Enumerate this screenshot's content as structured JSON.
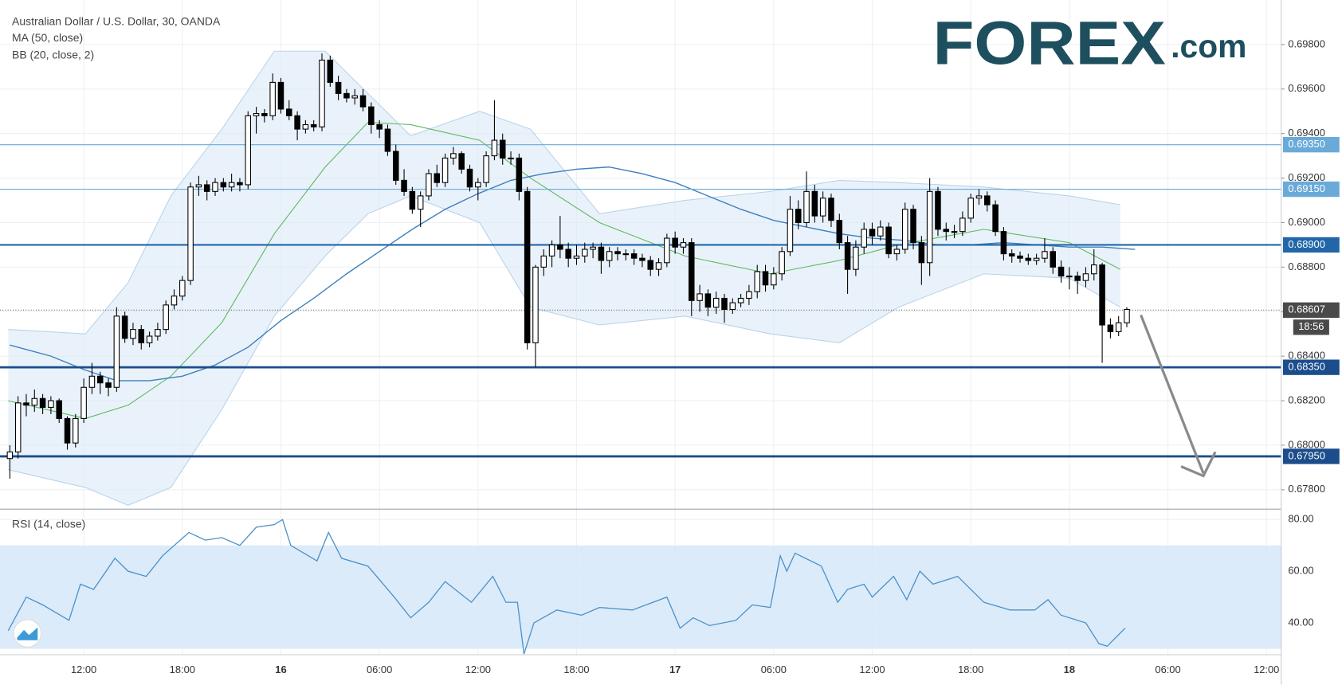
{
  "chart_data": {
    "type": "candlestick",
    "title": "Australian Dollar / U.S. Dollar, 30, OANDA",
    "indicators": [
      "MA (50, close)",
      "BB (20, close, 2)"
    ],
    "logo": {
      "brand": "FOREX",
      "suffix": ".com"
    },
    "xlim": [
      6.9,
      84.9
    ],
    "xticks": [
      {
        "value": 12,
        "label": "12:00"
      },
      {
        "value": 18,
        "label": "18:00"
      },
      {
        "value": 24,
        "label": "16"
      },
      {
        "value": 30,
        "label": "06:00"
      },
      {
        "value": 36,
        "label": "12:00"
      },
      {
        "value": 42,
        "label": "18:00"
      },
      {
        "value": 48,
        "label": "17"
      },
      {
        "value": 54,
        "label": "06:00"
      },
      {
        "value": 60,
        "label": "12:00"
      },
      {
        "value": 66,
        "label": "18:00"
      },
      {
        "value": 72,
        "label": "18"
      },
      {
        "value": 78,
        "label": "06:00"
      },
      {
        "value": 84,
        "label": "12:00"
      }
    ],
    "ylim": [
      0.6772,
      0.7
    ],
    "yticks": [
      {
        "value": 0.698,
        "label": "0.69800"
      },
      {
        "value": 0.696,
        "label": "0.69600"
      },
      {
        "value": 0.694,
        "label": "0.69400"
      },
      {
        "value": 0.692,
        "label": "0.69200"
      },
      {
        "value": 0.69,
        "label": "0.69000"
      },
      {
        "value": 0.688,
        "label": "0.68800"
      },
      {
        "value": 0.686,
        "label": "0.68600"
      },
      {
        "value": 0.684,
        "label": "0.68400"
      },
      {
        "value": 0.682,
        "label": "0.68200"
      },
      {
        "value": 0.68,
        "label": "0.68000"
      },
      {
        "value": 0.678,
        "label": "0.67800"
      }
    ],
    "grid": true,
    "up_color": "#ffffff",
    "down_color": "#000000",
    "x": [
      7.5,
      8,
      8.5,
      9,
      9.5,
      10,
      10.5,
      11,
      11.5,
      12,
      12.5,
      13,
      13.5,
      14,
      14.5,
      15,
      15.5,
      16,
      16.5,
      17,
      17.5,
      18,
      18.5,
      19,
      19.5,
      20,
      20.5,
      21,
      21.5,
      22,
      22.5,
      23,
      23.5,
      24,
      24.5,
      25,
      25.5,
      26,
      26.5,
      27,
      27.5,
      28,
      28.5,
      29,
      29.5,
      30,
      30.5,
      31,
      31.5,
      32,
      32.5,
      33,
      33.5,
      34,
      34.5,
      35,
      35.5,
      36,
      36.5,
      37,
      37.5,
      38,
      38.5,
      39,
      39.5,
      40,
      40.5,
      41,
      41.5,
      42,
      42.5,
      43,
      43.5,
      44,
      44.5,
      45,
      45.5,
      46,
      46.5,
      47,
      47.5,
      48,
      48.5,
      49,
      49.5,
      50,
      50.5,
      51,
      51.5,
      52,
      52.5,
      53,
      53.5,
      54,
      54.5,
      55,
      55.5,
      56,
      56.5,
      57,
      57.5,
      58,
      58.5,
      59,
      59.5,
      60,
      60.5,
      61,
      61.5,
      62,
      62.5,
      63,
      63.5,
      64,
      64.5,
      65,
      65.5,
      66,
      66.5,
      67,
      67.5,
      68,
      68.5,
      69,
      69.5,
      70,
      70.5,
      71,
      71.5,
      72,
      72.5,
      73,
      73.5,
      74,
      74.5,
      75,
      75.5
    ],
    "ohlc": [
      [
        0.6794,
        0.68,
        0.6785,
        0.6797
      ],
      [
        0.6797,
        0.6822,
        0.6794,
        0.6819
      ],
      [
        0.6819,
        0.6823,
        0.6813,
        0.6818
      ],
      [
        0.6818,
        0.6825,
        0.6815,
        0.6821
      ],
      [
        0.6821,
        0.6823,
        0.6814,
        0.6817
      ],
      [
        0.6817,
        0.6822,
        0.6814,
        0.682
      ],
      [
        0.682,
        0.6821,
        0.681,
        0.6812
      ],
      [
        0.6812,
        0.6813,
        0.6798,
        0.6801
      ],
      [
        0.6801,
        0.6814,
        0.6799,
        0.6812
      ],
      [
        0.6812,
        0.683,
        0.681,
        0.6826
      ],
      [
        0.6826,
        0.6837,
        0.6823,
        0.6831
      ],
      [
        0.6831,
        0.6833,
        0.6823,
        0.6828
      ],
      [
        0.6828,
        0.683,
        0.6822,
        0.6826
      ],
      [
        0.6826,
        0.6862,
        0.6824,
        0.6858
      ],
      [
        0.6858,
        0.686,
        0.6846,
        0.6848
      ],
      [
        0.6848,
        0.6855,
        0.6845,
        0.6852
      ],
      [
        0.6852,
        0.6854,
        0.6843,
        0.6846
      ],
      [
        0.6846,
        0.6851,
        0.6844,
        0.6849
      ],
      [
        0.6849,
        0.6855,
        0.6847,
        0.6852
      ],
      [
        0.6852,
        0.6865,
        0.685,
        0.6863
      ],
      [
        0.6863,
        0.687,
        0.6861,
        0.6867
      ],
      [
        0.6867,
        0.6876,
        0.6865,
        0.6874
      ],
      [
        0.6874,
        0.6918,
        0.6872,
        0.6916
      ],
      [
        0.6916,
        0.6921,
        0.6912,
        0.6917
      ],
      [
        0.6917,
        0.6919,
        0.691,
        0.6914
      ],
      [
        0.6914,
        0.692,
        0.6912,
        0.6918
      ],
      [
        0.6918,
        0.692,
        0.6914,
        0.6916
      ],
      [
        0.6916,
        0.6922,
        0.6914,
        0.6918
      ],
      [
        0.6918,
        0.692,
        0.6914,
        0.6917
      ],
      [
        0.6917,
        0.695,
        0.6915,
        0.6948
      ],
      [
        0.6948,
        0.6952,
        0.694,
        0.6949
      ],
      [
        0.6949,
        0.6951,
        0.6945,
        0.6948
      ],
      [
        0.6948,
        0.6967,
        0.6946,
        0.6963
      ],
      [
        0.6963,
        0.6965,
        0.6949,
        0.6951
      ],
      [
        0.6951,
        0.6955,
        0.6946,
        0.6948
      ],
      [
        0.6948,
        0.695,
        0.6937,
        0.6942
      ],
      [
        0.6942,
        0.6946,
        0.694,
        0.6944
      ],
      [
        0.6944,
        0.6946,
        0.6941,
        0.6943
      ],
      [
        0.6943,
        0.6976,
        0.6941,
        0.6973
      ],
      [
        0.6973,
        0.6975,
        0.6961,
        0.6963
      ],
      [
        0.6963,
        0.6966,
        0.6955,
        0.6958
      ],
      [
        0.6958,
        0.696,
        0.6954,
        0.6956
      ],
      [
        0.6956,
        0.696,
        0.6953,
        0.6957
      ],
      [
        0.6957,
        0.696,
        0.695,
        0.6952
      ],
      [
        0.6952,
        0.6954,
        0.694,
        0.6944
      ],
      [
        0.6944,
        0.6946,
        0.6938,
        0.6942
      ],
      [
        0.6942,
        0.6944,
        0.693,
        0.6932
      ],
      [
        0.6932,
        0.6935,
        0.6917,
        0.6919
      ],
      [
        0.6919,
        0.6924,
        0.6912,
        0.6914
      ],
      [
        0.6914,
        0.6916,
        0.6904,
        0.6906
      ],
      [
        0.6906,
        0.6914,
        0.6898,
        0.6912
      ],
      [
        0.6912,
        0.6924,
        0.691,
        0.6922
      ],
      [
        0.6922,
        0.6926,
        0.6916,
        0.6918
      ],
      [
        0.6918,
        0.6931,
        0.6916,
        0.6929
      ],
      [
        0.6929,
        0.6934,
        0.6926,
        0.6931
      ],
      [
        0.6931,
        0.6932,
        0.6922,
        0.6924
      ],
      [
        0.6924,
        0.6926,
        0.6914,
        0.6916
      ],
      [
        0.6916,
        0.692,
        0.691,
        0.6918
      ],
      [
        0.6918,
        0.6932,
        0.6916,
        0.693
      ],
      [
        0.693,
        0.6955,
        0.6928,
        0.6937
      ],
      [
        0.6937,
        0.694,
        0.6926,
        0.6929
      ],
      [
        0.6929,
        0.6932,
        0.6926,
        0.6929
      ],
      [
        0.6929,
        0.6931,
        0.691,
        0.6914
      ],
      [
        0.6914,
        0.6916,
        0.6843,
        0.6846
      ],
      [
        0.6846,
        0.6881,
        0.6835,
        0.688
      ],
      [
        0.688,
        0.6888,
        0.6876,
        0.6885
      ],
      [
        0.6885,
        0.6892,
        0.688,
        0.689
      ],
      [
        0.689,
        0.6903,
        0.6884,
        0.6888
      ],
      [
        0.6888,
        0.6891,
        0.688,
        0.6884
      ],
      [
        0.6884,
        0.689,
        0.6881,
        0.6885
      ],
      [
        0.6885,
        0.6891,
        0.6882,
        0.6888
      ],
      [
        0.6888,
        0.6891,
        0.6884,
        0.6889
      ],
      [
        0.6889,
        0.6891,
        0.6877,
        0.6883
      ],
      [
        0.6883,
        0.6889,
        0.688,
        0.6887
      ],
      [
        0.6887,
        0.6889,
        0.6883,
        0.6886
      ],
      [
        0.6886,
        0.6888,
        0.6883,
        0.6886
      ],
      [
        0.6886,
        0.6888,
        0.6881,
        0.6884
      ],
      [
        0.6884,
        0.6886,
        0.688,
        0.6883
      ],
      [
        0.6883,
        0.6885,
        0.6876,
        0.6879
      ],
      [
        0.6879,
        0.6884,
        0.6876,
        0.6882
      ],
      [
        0.6882,
        0.6895,
        0.688,
        0.6893
      ],
      [
        0.6893,
        0.6896,
        0.6886,
        0.6889
      ],
      [
        0.6889,
        0.6893,
        0.6886,
        0.6891
      ],
      [
        0.6891,
        0.6893,
        0.6858,
        0.6865
      ],
      [
        0.6865,
        0.6872,
        0.686,
        0.6868
      ],
      [
        0.6868,
        0.687,
        0.6858,
        0.6862
      ],
      [
        0.6862,
        0.6869,
        0.6859,
        0.6866
      ],
      [
        0.6866,
        0.6868,
        0.6855,
        0.6861
      ],
      [
        0.6861,
        0.6866,
        0.6859,
        0.6864
      ],
      [
        0.6864,
        0.6868,
        0.6862,
        0.6866
      ],
      [
        0.6866,
        0.6872,
        0.6863,
        0.6869
      ],
      [
        0.6869,
        0.6881,
        0.6866,
        0.6878
      ],
      [
        0.6878,
        0.6881,
        0.6869,
        0.6872
      ],
      [
        0.6872,
        0.688,
        0.687,
        0.6877
      ],
      [
        0.6877,
        0.6889,
        0.6874,
        0.6887
      ],
      [
        0.6887,
        0.6912,
        0.6885,
        0.6906
      ],
      [
        0.6906,
        0.691,
        0.6897,
        0.69
      ],
      [
        0.69,
        0.6923,
        0.6898,
        0.6914
      ],
      [
        0.6914,
        0.6917,
        0.69,
        0.6903
      ],
      [
        0.6903,
        0.6914,
        0.69,
        0.6911
      ],
      [
        0.6911,
        0.6913,
        0.6898,
        0.6901
      ],
      [
        0.6901,
        0.6904,
        0.6888,
        0.6891
      ],
      [
        0.6891,
        0.6894,
        0.6868,
        0.6879
      ],
      [
        0.6879,
        0.6892,
        0.6876,
        0.6889
      ],
      [
        0.6889,
        0.69,
        0.6886,
        0.6897
      ],
      [
        0.6897,
        0.69,
        0.689,
        0.6894
      ],
      [
        0.6894,
        0.6901,
        0.6892,
        0.6898
      ],
      [
        0.6898,
        0.69,
        0.6884,
        0.6886
      ],
      [
        0.6886,
        0.689,
        0.6883,
        0.6888
      ],
      [
        0.6888,
        0.6909,
        0.6886,
        0.6906
      ],
      [
        0.6906,
        0.6908,
        0.6888,
        0.6891
      ],
      [
        0.6891,
        0.6894,
        0.6872,
        0.6882
      ],
      [
        0.6882,
        0.692,
        0.6876,
        0.6914
      ],
      [
        0.6914,
        0.6916,
        0.6894,
        0.6897
      ],
      [
        0.6897,
        0.69,
        0.6892,
        0.6896
      ],
      [
        0.6896,
        0.6899,
        0.6893,
        0.6896
      ],
      [
        0.6896,
        0.6905,
        0.6894,
        0.6902
      ],
      [
        0.6902,
        0.6913,
        0.69,
        0.6911
      ],
      [
        0.6911,
        0.6915,
        0.6908,
        0.6912
      ],
      [
        0.6912,
        0.6914,
        0.6905,
        0.6908
      ],
      [
        0.6908,
        0.691,
        0.6894,
        0.6896
      ],
      [
        0.6896,
        0.6898,
        0.6883,
        0.6886
      ],
      [
        0.6886,
        0.6888,
        0.6882,
        0.6885
      ],
      [
        0.6885,
        0.6887,
        0.6882,
        0.6884
      ],
      [
        0.6884,
        0.6886,
        0.6881,
        0.6883
      ],
      [
        0.6883,
        0.6886,
        0.6881,
        0.6884
      ],
      [
        0.6884,
        0.6893,
        0.6882,
        0.6887
      ],
      [
        0.6887,
        0.6889,
        0.6877,
        0.688
      ],
      [
        0.688,
        0.6883,
        0.6873,
        0.6876
      ],
      [
        0.6876,
        0.688,
        0.687,
        0.6876
      ],
      [
        0.6876,
        0.6878,
        0.6868,
        0.6874
      ],
      [
        0.6874,
        0.688,
        0.6871,
        0.6877
      ],
      [
        0.6877,
        0.6888,
        0.6874,
        0.6881
      ],
      [
        0.6881,
        0.6882,
        0.6837,
        0.6854
      ],
      [
        0.6854,
        0.6857,
        0.6848,
        0.6851
      ],
      [
        0.6851,
        0.6858,
        0.6849,
        0.6855
      ],
      [
        0.6855,
        0.6862,
        0.6853,
        0.6861
      ]
    ],
    "ma": {
      "color": "#3f7fbf",
      "x": [
        7.5,
        10,
        12,
        14,
        16,
        18,
        20,
        22,
        24,
        26,
        28,
        30,
        32,
        34,
        36,
        38,
        40,
        42,
        44,
        46,
        48,
        50,
        52,
        54,
        56,
        58,
        60,
        62,
        64,
        66,
        68,
        70,
        72,
        74,
        76
      ],
      "values": [
        0.6845,
        0.684,
        0.6834,
        0.6829,
        0.6829,
        0.6831,
        0.6836,
        0.6844,
        0.6856,
        0.6866,
        0.6877,
        0.6887,
        0.6897,
        0.6906,
        0.6913,
        0.6919,
        0.6922,
        0.6924,
        0.6925,
        0.6922,
        0.6918,
        0.6912,
        0.6906,
        0.6901,
        0.6898,
        0.6895,
        0.6893,
        0.6892,
        0.689,
        0.689,
        0.6891,
        0.689,
        0.6889,
        0.6889,
        0.6888
      ]
    },
    "bb": {
      "color": "#5cb85c",
      "band_color": "#dbeaf7",
      "x": [
        7.4,
        12.1,
        14.7,
        17.3,
        20.4,
        23.6,
        26.7,
        29.3,
        31.9,
        36.1,
        39.2,
        43.4,
        48.6,
        53.8,
        58,
        61.6,
        66.8,
        72,
        75.1
      ],
      "upper": [
        0.6852,
        0.685,
        0.6873,
        0.6912,
        0.6942,
        0.6977,
        0.6977,
        0.6958,
        0.6939,
        0.695,
        0.6942,
        0.6904,
        0.691,
        0.6914,
        0.6919,
        0.6918,
        0.6916,
        0.6912,
        0.6908
      ],
      "middle": [
        0.682,
        0.6812,
        0.6818,
        0.6831,
        0.6855,
        0.6895,
        0.6925,
        0.6945,
        0.6944,
        0.6937,
        0.692,
        0.69,
        0.6885,
        0.6877,
        0.6883,
        0.689,
        0.6897,
        0.6891,
        0.6879
      ],
      "lower": [
        0.6789,
        0.6781,
        0.6773,
        0.6781,
        0.6816,
        0.6858,
        0.6885,
        0.6904,
        0.6912,
        0.69,
        0.6862,
        0.6854,
        0.6858,
        0.685,
        0.6846,
        0.6862,
        0.6877,
        0.6875,
        0.6862
      ]
    },
    "levels": [
      {
        "value": 0.6935,
        "label": "0.69350",
        "color": "#6aaad8"
      },
      {
        "value": 0.6915,
        "label": "0.69150",
        "color": "#6aaad8"
      },
      {
        "value": 0.689,
        "label": "0.68900",
        "color": "#2266a8"
      },
      {
        "value": 0.6835,
        "label": "0.68350",
        "color": "#1b4d8c"
      },
      {
        "value": 0.6795,
        "label": "0.67950",
        "color": "#1b4d8c"
      }
    ],
    "last_price": {
      "value": 0.68607,
      "label": "0.68607",
      "countdown": "18:56"
    },
    "rsi": {
      "title": "RSI (14, close)",
      "color": "#4a90c8",
      "band": [
        30,
        70
      ],
      "ylim": [
        27.7,
        83.3
      ],
      "yticks": [
        {
          "value": 80,
          "label": "80.00"
        },
        {
          "value": 60,
          "label": "60.00"
        },
        {
          "value": 40,
          "label": "40.00"
        }
      ],
      "x": [
        7.4,
        8.5,
        9.5,
        11.1,
        11.8,
        12.6,
        13.9,
        14.7,
        15.8,
        16.8,
        18.4,
        19.4,
        20.4,
        21.5,
        22.5,
        23.6,
        24.1,
        24.6,
        26.2,
        26.9,
        27.7,
        29.3,
        30.9,
        31.9,
        33,
        34,
        35.6,
        36.9,
        37.7,
        38.4,
        38.8,
        39.4,
        40.8,
        42.3,
        43.4,
        45.4,
        47.5,
        48.3,
        49.1,
        50.1,
        51.7,
        52.7,
        53.8,
        54.4,
        54.8,
        55.3,
        56.9,
        57.9,
        58.5,
        59.5,
        60,
        61.3,
        62.1,
        62.9,
        63.7,
        65.2,
        66.8,
        68.4,
        69.9,
        70.7,
        71.5,
        73,
        73.8,
        74.3,
        75.4
      ],
      "values": [
        37,
        50,
        47,
        41,
        55,
        53,
        65,
        60,
        58,
        66,
        75,
        72,
        73,
        70,
        77,
        78,
        80,
        70,
        64,
        75,
        65,
        62,
        50,
        42,
        48,
        56,
        48,
        58,
        48,
        48,
        28,
        40,
        45,
        43,
        46,
        45,
        50,
        38,
        42,
        39,
        41,
        47,
        46,
        66,
        60,
        67,
        62,
        48,
        53,
        55,
        50,
        58,
        49,
        60,
        55,
        58,
        48,
        45,
        45,
        49,
        43,
        40,
        32,
        31,
        38
      ]
    }
  }
}
